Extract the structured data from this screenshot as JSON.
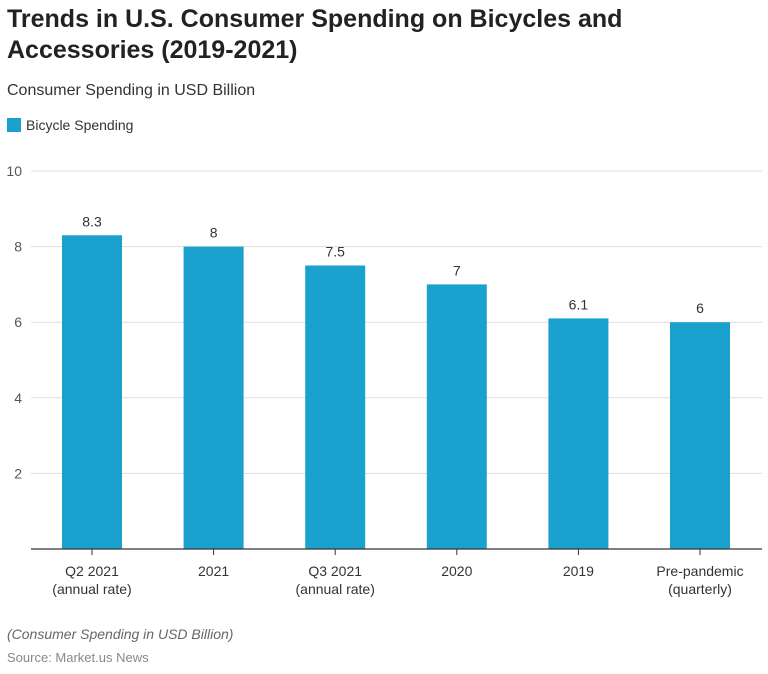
{
  "title": "Trends in U.S. Consumer Spending on Bicycles and Accessories (2019-2021)",
  "subtitle": "Consumer Spending in USD Billion",
  "note": "(Consumer Spending in USD Billion)",
  "source": "Source: Market.us News",
  "colors": {
    "bar": "#1ba1cd"
  },
  "chart_data": {
    "type": "bar",
    "categories": [
      [
        "Q2 2021",
        "(annual rate)"
      ],
      [
        "2021"
      ],
      [
        "Q3 2021",
        "(annual rate)"
      ],
      [
        "2020"
      ],
      [
        "2019"
      ],
      [
        "Pre-pandemic",
        "(quarterly)"
      ]
    ],
    "series": [
      {
        "name": "Bicycle Spending",
        "values": [
          8.3,
          8,
          7.5,
          7,
          6.1,
          6
        ],
        "labels": [
          "8.3",
          "8",
          "7.5",
          "7",
          "6.1",
          "6"
        ]
      }
    ],
    "ylim": [
      0,
      10
    ],
    "yticks": [
      2,
      4,
      6,
      8,
      10
    ],
    "grid": true,
    "legend": "top-left"
  }
}
